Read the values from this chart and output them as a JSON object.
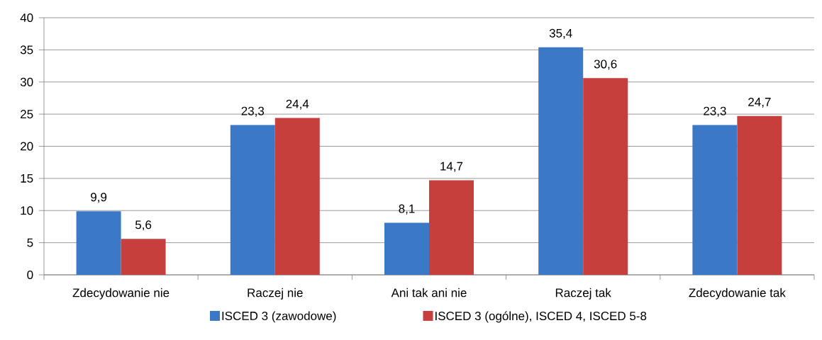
{
  "chart_data": {
    "type": "bar",
    "categories": [
      "Zdecydowanie nie",
      "Raczej nie",
      "Ani tak ani nie",
      "Raczej tak",
      "Zdecydowanie tak"
    ],
    "series": [
      {
        "name": "ISCED 3 (zawodowe)",
        "color": "#3b78c6",
        "values": [
          9.9,
          23.3,
          8.1,
          35.4,
          23.3
        ],
        "value_labels": [
          "9,9",
          "23,3",
          "8,1",
          "35,4",
          "23,3"
        ]
      },
      {
        "name": "ISCED 3 (ogólne), ISCED 4, ISCED 5-8",
        "color": "#c73f3d",
        "values": [
          5.6,
          24.4,
          14.7,
          30.6,
          24.7
        ],
        "value_labels": [
          "5,6",
          "24,4",
          "14,7",
          "30,6",
          "24,7"
        ]
      }
    ],
    "ylim": [
      0,
      40
    ],
    "yticks": [
      0,
      5,
      10,
      15,
      20,
      25,
      30,
      35,
      40
    ],
    "grid": "y",
    "legend": "bottom"
  }
}
